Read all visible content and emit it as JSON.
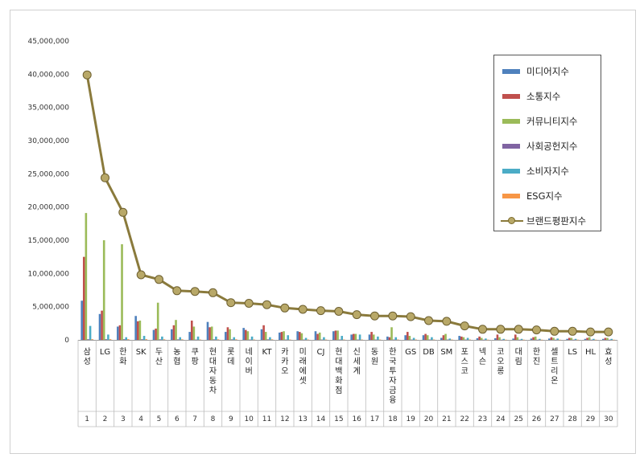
{
  "chart_data": {
    "type": "bar",
    "x_numbers": [
      "1",
      "2",
      "3",
      "4",
      "5",
      "6",
      "7",
      "8",
      "9",
      "10",
      "11",
      "12",
      "13",
      "14",
      "15",
      "16",
      "17",
      "18",
      "19",
      "20",
      "21",
      "22",
      "23",
      "24",
      "25",
      "26",
      "27",
      "28",
      "29",
      "30"
    ],
    "categories": [
      "삼성",
      "LG",
      "한화",
      "SK",
      "두산",
      "농협",
      "쿠팡",
      "현대자동차",
      "롯데",
      "네이버",
      "KT",
      "카카오",
      "미래에셋",
      "CJ",
      "현대백화점",
      "신세계",
      "동원",
      "한국투자금융",
      "GS",
      "DB",
      "SM",
      "포스코",
      "넥슨",
      "코오롱",
      "대림",
      "한진",
      "셀트리온",
      "LS",
      "HL",
      "효성"
    ],
    "ylim": [
      0,
      45000000
    ],
    "yticks": [
      "0",
      "5,000,000",
      "10,000,000",
      "15,000,000",
      "20,000,000",
      "25,000,000",
      "30,000,000",
      "35,000,000",
      "40,000,000",
      "45,000,000"
    ],
    "series": [
      {
        "name": "미디어지수",
        "color": "#4f81bd",
        "values": [
          5900000,
          3900000,
          2000000,
          3600000,
          1500000,
          1600000,
          1200000,
          2700000,
          1200000,
          1800000,
          1600000,
          1100000,
          1300000,
          1300000,
          1300000,
          800000,
          800000,
          500000,
          700000,
          700000,
          300000,
          600000,
          250000,
          250000,
          200000,
          200000,
          200000,
          150000,
          150000,
          150000
        ]
      },
      {
        "name": "소통지수",
        "color": "#c0504d",
        "values": [
          12500000,
          4400000,
          2200000,
          2800000,
          1700000,
          2200000,
          2900000,
          1900000,
          1900000,
          1500000,
          2200000,
          1200000,
          1200000,
          900000,
          1400000,
          900000,
          1200000,
          400000,
          1200000,
          900000,
          700000,
          500000,
          500000,
          800000,
          800000,
          400000,
          400000,
          300000,
          300000,
          300000
        ]
      },
      {
        "name": "커뮤니티지수",
        "color": "#9bbb59",
        "values": [
          19100000,
          15000000,
          14400000,
          2900000,
          5600000,
          3000000,
          2000000,
          2000000,
          1600000,
          1300000,
          1200000,
          1300000,
          1000000,
          1100000,
          1400000,
          900000,
          800000,
          1900000,
          600000,
          700000,
          900000,
          400000,
          300000,
          400000,
          400000,
          500000,
          300000,
          300000,
          400000,
          300000
        ]
      },
      {
        "name": "사회공헌지수",
        "color": "#8064a2",
        "values": [
          100000,
          100000,
          100000,
          100000,
          80000,
          80000,
          50000,
          80000,
          80000,
          50000,
          80000,
          50000,
          50000,
          50000,
          50000,
          50000,
          50000,
          50000,
          50000,
          50000,
          50000,
          50000,
          30000,
          30000,
          30000,
          30000,
          30000,
          30000,
          30000,
          30000
        ]
      },
      {
        "name": "소비자지수",
        "color": "#4bacc6",
        "values": [
          2100000,
          800000,
          400000,
          600000,
          500000,
          400000,
          500000,
          500000,
          400000,
          500000,
          400000,
          700000,
          300000,
          400000,
          600000,
          800000,
          500000,
          400000,
          300000,
          400000,
          200000,
          300000,
          200000,
          150000,
          150000,
          150000,
          200000,
          150000,
          150000,
          150000
        ]
      },
      {
        "name": "ESG지수",
        "color": "#f79646",
        "values": [
          100000,
          100000,
          100000,
          100000,
          80000,
          80000,
          50000,
          80000,
          80000,
          50000,
          80000,
          50000,
          50000,
          50000,
          50000,
          50000,
          50000,
          50000,
          50000,
          50000,
          50000,
          50000,
          30000,
          30000,
          30000,
          30000,
          30000,
          30000,
          30000,
          30000
        ]
      }
    ],
    "line_series": {
      "name": "브랜드평판지수",
      "color": "#8a7a3c",
      "marker_color": "#b8a868",
      "values": [
        39900000,
        24400000,
        19200000,
        9800000,
        9100000,
        7400000,
        7300000,
        7100000,
        5600000,
        5500000,
        5300000,
        4800000,
        4600000,
        4400000,
        4300000,
        3800000,
        3600000,
        3600000,
        3500000,
        2900000,
        2800000,
        2100000,
        1600000,
        1600000,
        1600000,
        1500000,
        1300000,
        1300000,
        1200000,
        1200000
      ]
    },
    "legend_position": "top-right",
    "grid": false
  }
}
